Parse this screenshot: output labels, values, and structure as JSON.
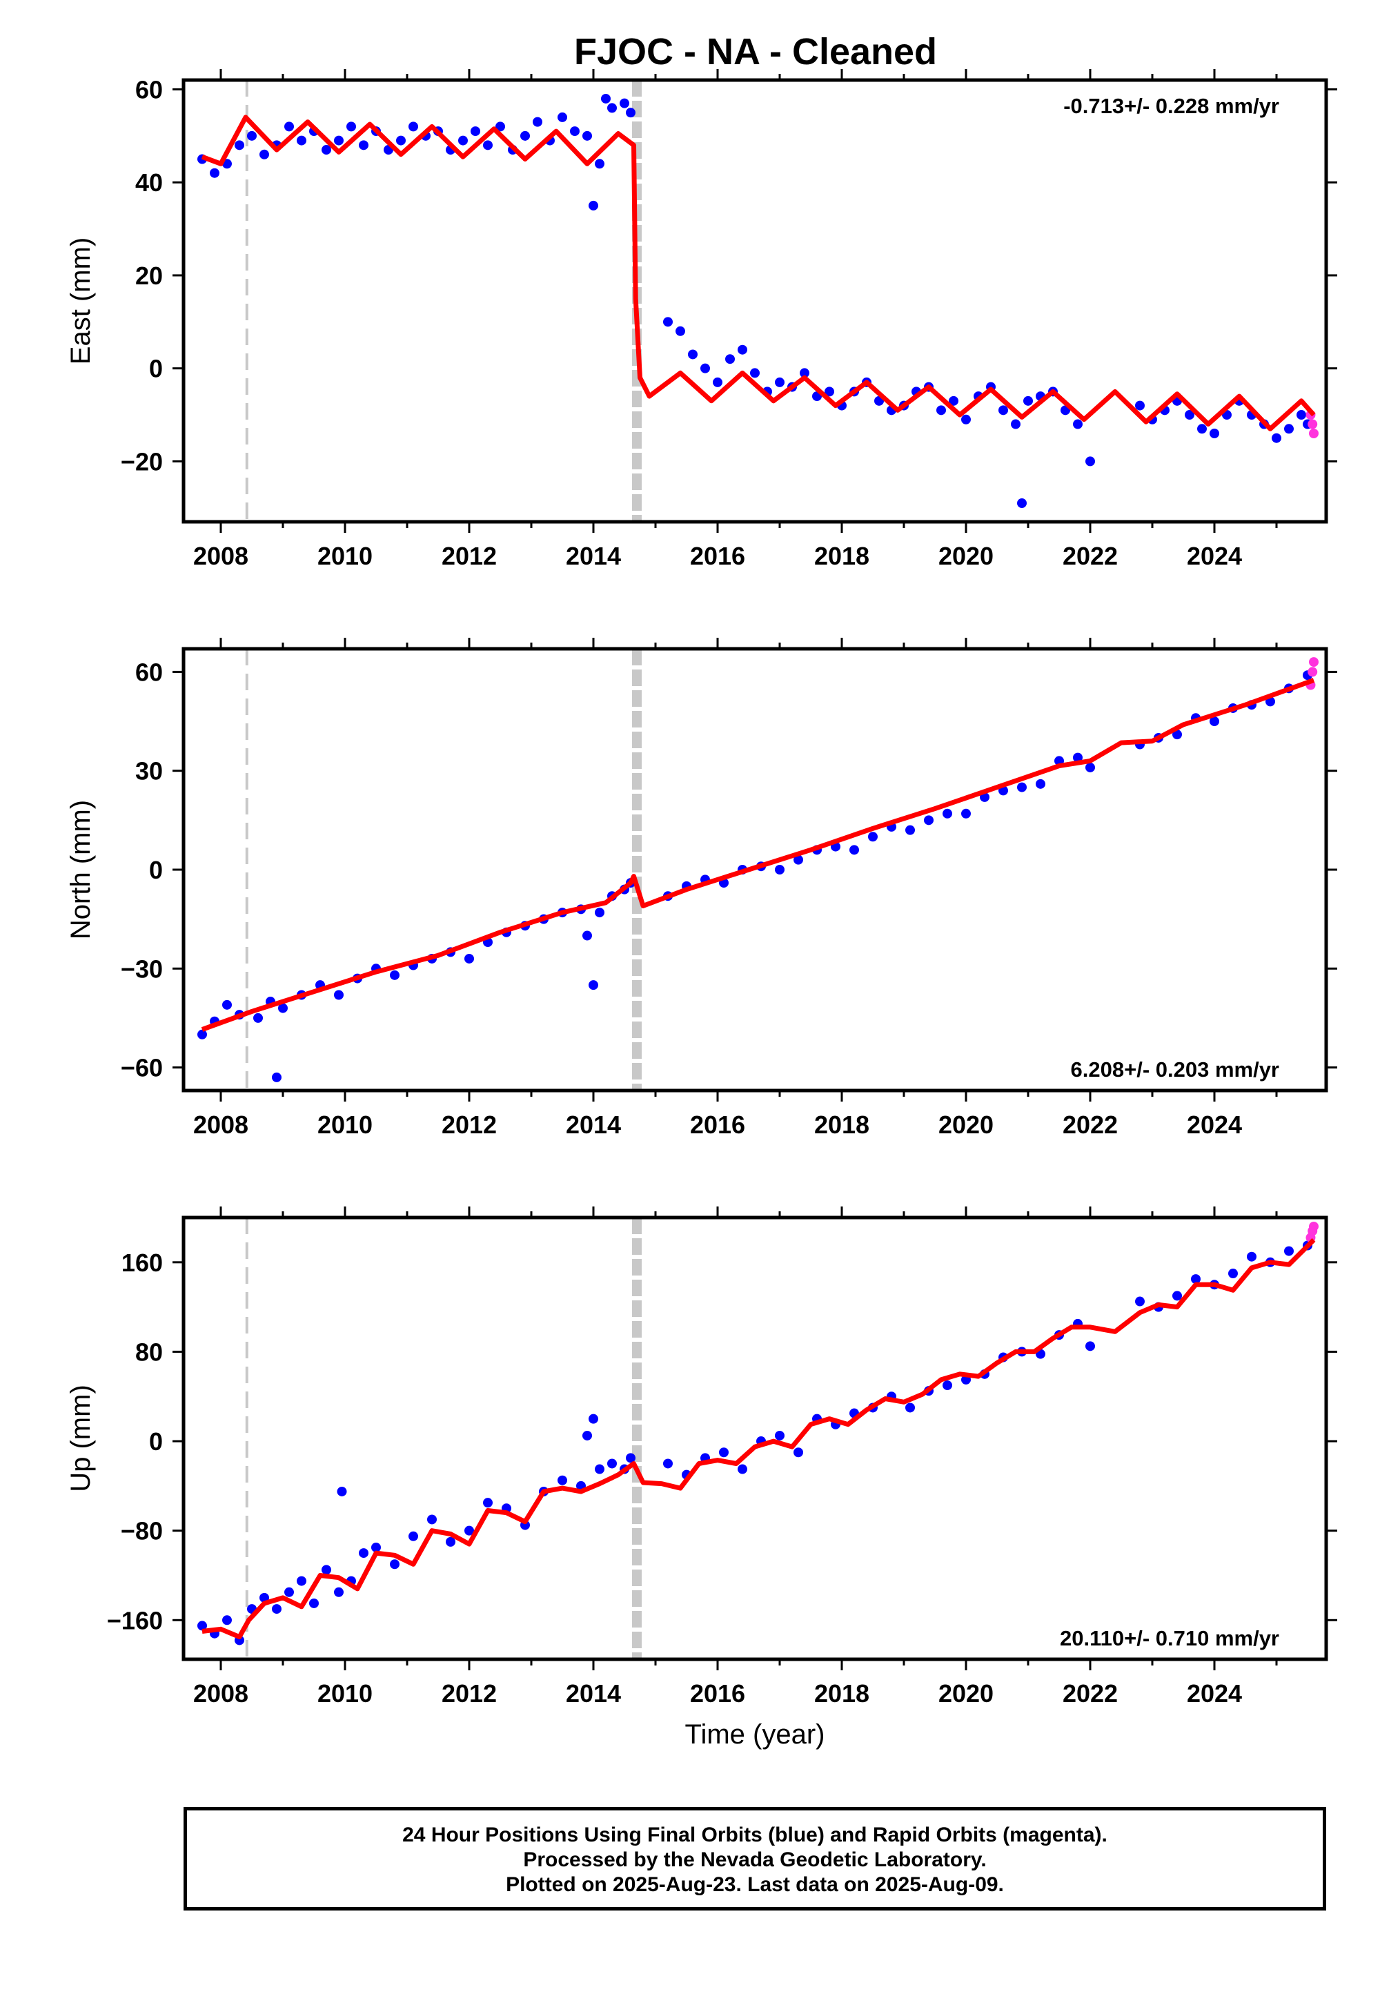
{
  "title": "FJOC  - NA - Cleaned",
  "footer": {
    "line1": "24 Hour Positions Using Final Orbits (blue) and Rapid Orbits (magenta).",
    "line2": "Processed by the Nevada Geodetic Laboratory.",
    "line3": "Plotted on 2025-Aug-23. Last data on 2025-Aug-09."
  },
  "colors": {
    "final_points": "#0000ff",
    "rapid_points": "#ff33dd",
    "model": "#ff0000",
    "event_lines": "#c8c8c8"
  },
  "chart_data": [
    {
      "type": "scatter",
      "ylabel": "East (mm)",
      "xlabel": "",
      "xlim": [
        2007.4,
        2025.8
      ],
      "ylim": [
        -33,
        62
      ],
      "xticks": [
        2008,
        2010,
        2012,
        2014,
        2016,
        2018,
        2020,
        2022,
        2024
      ],
      "yticks": [
        -20,
        0,
        20,
        40,
        60
      ],
      "rate": "-0.713+/- 0.228 mm/yr",
      "rate_position": "top-right",
      "event_lines": [
        {
          "x": 2008.42,
          "style": "dashed"
        },
        {
          "x": 2014.7,
          "style": "thick-dashed"
        }
      ],
      "model": {
        "name": "",
        "x": [
          2007.7,
          2008.0,
          2008.4,
          2008.9,
          2009.4,
          2009.9,
          2010.4,
          2010.9,
          2011.4,
          2011.9,
          2012.4,
          2012.9,
          2013.4,
          2013.9,
          2014.4,
          2014.65,
          2014.68,
          2014.75,
          2014.9,
          2015.4,
          2015.9,
          2016.4,
          2016.9,
          2017.4,
          2017.9,
          2018.4,
          2018.9,
          2019.4,
          2019.9,
          2020.4,
          2020.9,
          2021.4,
          2021.9,
          2022.4,
          2022.9,
          2023.4,
          2023.9,
          2024.4,
          2024.9,
          2025.4,
          2025.6
        ],
        "y": [
          45.5,
          44,
          54,
          47,
          53,
          46.5,
          52.5,
          46,
          52,
          45.5,
          51.5,
          45,
          51,
          44,
          50.5,
          48,
          15,
          -2,
          -6,
          -1,
          -7,
          -1,
          -7,
          -2,
          -8,
          -3,
          -9,
          -4,
          -10,
          -4.5,
          -10.5,
          -5,
          -11,
          -5,
          -11.5,
          -5.5,
          -12,
          -6,
          -13,
          -7,
          -10
        ]
      },
      "final_points": {
        "x": [
          2007.7,
          2007.9,
          2008.1,
          2008.3,
          2008.5,
          2008.7,
          2008.9,
          2009.1,
          2009.3,
          2009.5,
          2009.7,
          2009.9,
          2010.1,
          2010.3,
          2010.5,
          2010.7,
          2010.9,
          2011.1,
          2011.3,
          2011.5,
          2011.7,
          2011.9,
          2012.1,
          2012.3,
          2012.5,
          2012.7,
          2012.9,
          2013.1,
          2013.3,
          2013.5,
          2013.7,
          2013.9,
          2014.0,
          2014.1,
          2014.2,
          2014.3,
          2014.5,
          2014.6,
          2015.2,
          2015.4,
          2015.6,
          2015.8,
          2016.0,
          2016.2,
          2016.4,
          2016.6,
          2016.8,
          2017.0,
          2017.2,
          2017.4,
          2017.6,
          2017.8,
          2018.0,
          2018.2,
          2018.4,
          2018.6,
          2018.8,
          2019.0,
          2019.2,
          2019.4,
          2019.6,
          2019.8,
          2020.0,
          2020.2,
          2020.4,
          2020.6,
          2020.8,
          2020.9,
          2021.0,
          2021.2,
          2021.4,
          2021.6,
          2021.8,
          2022.0,
          2022.8,
          2023.0,
          2023.2,
          2023.4,
          2023.6,
          2023.8,
          2024.0,
          2024.2,
          2024.4,
          2024.6,
          2024.8,
          2025.0,
          2025.2,
          2025.4,
          2025.5
        ],
        "y": [
          45,
          42,
          44,
          48,
          50,
          46,
          48,
          52,
          49,
          51,
          47,
          49,
          52,
          48,
          51,
          47,
          49,
          52,
          50,
          51,
          47,
          49,
          51,
          48,
          52,
          47,
          50,
          53,
          49,
          54,
          51,
          50,
          35,
          44,
          58,
          56,
          57,
          55,
          10,
          8,
          3,
          0,
          -3,
          2,
          4,
          -1,
          -5,
          -3,
          -4,
          -1,
          -6,
          -5,
          -8,
          -5,
          -3,
          -7,
          -9,
          -8,
          -5,
          -4,
          -9,
          -7,
          -11,
          -6,
          -4,
          -9,
          -12,
          -29,
          -7,
          -6,
          -5,
          -9,
          -12,
          -20,
          -8,
          -11,
          -9,
          -7,
          -10,
          -13,
          -14,
          -10,
          -7,
          -10,
          -12,
          -15,
          -13,
          -10,
          -12
        ]
      },
      "rapid_points": {
        "x": [
          2025.55,
          2025.58,
          2025.6
        ],
        "y": [
          -10,
          -12,
          -14
        ]
      }
    },
    {
      "type": "scatter",
      "ylabel": "North (mm)",
      "xlabel": "",
      "xlim": [
        2007.4,
        2025.8
      ],
      "ylim": [
        -67,
        67
      ],
      "xticks": [
        2008,
        2010,
        2012,
        2014,
        2016,
        2018,
        2020,
        2022,
        2024
      ],
      "yticks": [
        -60,
        -30,
        0,
        30,
        60
      ],
      "rate": "6.208+/- 0.203 mm/yr",
      "rate_position": "bottom-right",
      "event_lines": [
        {
          "x": 2008.42,
          "style": "dashed"
        },
        {
          "x": 2014.7,
          "style": "thick-dashed"
        }
      ],
      "model": {
        "name": "",
        "x": [
          2007.7,
          2008.5,
          2009.5,
          2010.5,
          2011.5,
          2012.5,
          2013.5,
          2014.2,
          2014.6,
          2014.65,
          2014.8,
          2015.5,
          2016.5,
          2017.5,
          2018.5,
          2019.5,
          2020.5,
          2021.5,
          2022.0,
          2022.5,
          2023.0,
          2023.5,
          2024.5,
          2025.6
        ],
        "y": [
          -48.5,
          -43,
          -37,
          -31,
          -26,
          -19,
          -13,
          -10,
          -4,
          -2,
          -11,
          -6,
          0,
          6,
          12.5,
          18.5,
          25,
          31.5,
          33,
          38.5,
          39,
          44,
          50,
          57.5
        ]
      },
      "final_points": {
        "x": [
          2007.7,
          2007.9,
          2008.1,
          2008.3,
          2008.6,
          2008.8,
          2008.9,
          2009.0,
          2009.3,
          2009.6,
          2009.9,
          2010.2,
          2010.5,
          2010.8,
          2011.1,
          2011.4,
          2011.7,
          2012.0,
          2012.3,
          2012.6,
          2012.9,
          2013.2,
          2013.5,
          2013.8,
          2013.9,
          2014.0,
          2014.1,
          2014.3,
          2014.5,
          2014.6,
          2015.2,
          2015.5,
          2015.8,
          2016.1,
          2016.4,
          2016.7,
          2017.0,
          2017.3,
          2017.6,
          2017.9,
          2018.2,
          2018.5,
          2018.8,
          2019.1,
          2019.4,
          2019.7,
          2020.0,
          2020.3,
          2020.6,
          2020.9,
          2021.2,
          2021.5,
          2021.8,
          2022.0,
          2022.8,
          2023.1,
          2023.4,
          2023.7,
          2024.0,
          2024.3,
          2024.6,
          2024.9,
          2025.2,
          2025.5
        ],
        "y": [
          -50,
          -46,
          -41,
          -44,
          -45,
          -40,
          -63,
          -42,
          -38,
          -35,
          -38,
          -33,
          -30,
          -32,
          -29,
          -27,
          -25,
          -27,
          -22,
          -19,
          -17,
          -15,
          -13,
          -12,
          -20,
          -35,
          -13,
          -8,
          -6,
          -4,
          -8,
          -5,
          -3,
          -4,
          0,
          1,
          0,
          3,
          6,
          7,
          6,
          10,
          13,
          12,
          15,
          17,
          17,
          22,
          24,
          25,
          26,
          33,
          34,
          31,
          38,
          40,
          41,
          46,
          45,
          49,
          50,
          51,
          55,
          59
        ]
      },
      "rapid_points": {
        "x": [
          2025.55,
          2025.58,
          2025.6
        ],
        "y": [
          56,
          60,
          63
        ]
      }
    },
    {
      "type": "scatter",
      "ylabel": "Up (mm)",
      "xlabel": "Time (year)",
      "xlim": [
        2007.4,
        2025.8
      ],
      "ylim": [
        -195,
        200
      ],
      "xticks": [
        2008,
        2010,
        2012,
        2014,
        2016,
        2018,
        2020,
        2022,
        2024
      ],
      "yticks": [
        -160,
        -80,
        0,
        80,
        160
      ],
      "rate": "20.110+/- 0.710 mm/yr",
      "rate_position": "bottom-right",
      "event_lines": [
        {
          "x": 2008.42,
          "style": "dashed"
        },
        {
          "x": 2014.7,
          "style": "thick-dashed"
        }
      ],
      "model": {
        "name": "",
        "x": [
          2007.7,
          2008.0,
          2008.3,
          2008.45,
          2008.7,
          2009.0,
          2009.3,
          2009.6,
          2009.9,
          2010.2,
          2010.5,
          2010.8,
          2011.1,
          2011.4,
          2011.7,
          2012.0,
          2012.3,
          2012.6,
          2012.9,
          2013.2,
          2013.5,
          2013.8,
          2014.1,
          2014.4,
          2014.65,
          2014.8,
          2015.1,
          2015.4,
          2015.7,
          2016.0,
          2016.3,
          2016.6,
          2016.9,
          2017.2,
          2017.5,
          2017.8,
          2018.1,
          2018.4,
          2018.7,
          2019.0,
          2019.3,
          2019.6,
          2019.9,
          2020.2,
          2020.5,
          2020.8,
          2021.1,
          2021.4,
          2021.7,
          2022.0,
          2022.4,
          2022.8,
          2023.1,
          2023.4,
          2023.7,
          2024.0,
          2024.3,
          2024.6,
          2024.9,
          2025.2,
          2025.6
        ],
        "y": [
          -170,
          -168,
          -175,
          -160,
          -145,
          -140,
          -148,
          -120,
          -122,
          -132,
          -100,
          -102,
          -110,
          -80,
          -83,
          -92,
          -62,
          -64,
          -72,
          -45,
          -42,
          -45,
          -38,
          -30,
          -20,
          -37,
          -38,
          -42,
          -20,
          -17,
          -20,
          -5,
          0,
          -5,
          15,
          20,
          15,
          28,
          38,
          35,
          42,
          55,
          60,
          58,
          70,
          80,
          80,
          92,
          102,
          102,
          98,
          115,
          122,
          120,
          140,
          140,
          135,
          155,
          160,
          158,
          180
        ]
      },
      "final_points": {
        "x": [
          2007.7,
          2007.9,
          2008.1,
          2008.3,
          2008.5,
          2008.7,
          2008.9,
          2009.1,
          2009.3,
          2009.5,
          2009.7,
          2009.9,
          2009.95,
          2010.1,
          2010.3,
          2010.5,
          2010.8,
          2011.1,
          2011.4,
          2011.7,
          2012.0,
          2012.3,
          2012.6,
          2012.9,
          2013.2,
          2013.5,
          2013.8,
          2013.9,
          2014.0,
          2014.1,
          2014.3,
          2014.5,
          2014.6,
          2015.2,
          2015.5,
          2015.8,
          2016.1,
          2016.4,
          2016.7,
          2017.0,
          2017.3,
          2017.6,
          2017.9,
          2018.2,
          2018.5,
          2018.8,
          2019.1,
          2019.4,
          2019.7,
          2020.0,
          2020.3,
          2020.6,
          2020.9,
          2021.2,
          2021.5,
          2021.8,
          2022.0,
          2022.8,
          2023.1,
          2023.4,
          2023.7,
          2024.0,
          2024.3,
          2024.6,
          2024.9,
          2025.2,
          2025.5
        ],
        "y": [
          -165,
          -172,
          -160,
          -178,
          -150,
          -140,
          -150,
          -135,
          -125,
          -145,
          -115,
          -135,
          -45,
          -125,
          -100,
          -95,
          -110,
          -85,
          -70,
          -90,
          -80,
          -55,
          -60,
          -75,
          -45,
          -35,
          -40,
          5,
          20,
          -25,
          -20,
          -25,
          -15,
          -20,
          -30,
          -15,
          -10,
          -25,
          0,
          5,
          -10,
          20,
          15,
          25,
          30,
          40,
          30,
          45,
          50,
          55,
          60,
          75,
          80,
          78,
          95,
          105,
          85,
          125,
          120,
          130,
          145,
          140,
          150,
          165,
          160,
          170,
          175
        ]
      },
      "rapid_points": {
        "x": [
          2025.55,
          2025.58,
          2025.6
        ],
        "y": [
          182,
          188,
          192
        ]
      }
    }
  ]
}
